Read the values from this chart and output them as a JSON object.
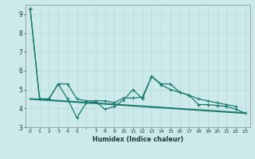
{
  "xlabel": "Humidex (Indice chaleur)",
  "x_values": [
    0,
    1,
    2,
    3,
    4,
    5,
    6,
    7,
    8,
    9,
    10,
    11,
    12,
    13,
    14,
    15,
    16,
    17,
    18,
    19,
    20,
    21,
    22,
    23
  ],
  "line_jagged": [
    9.3,
    4.5,
    4.5,
    5.3,
    4.5,
    3.5,
    4.3,
    4.35,
    3.95,
    4.1,
    4.45,
    5.0,
    4.5,
    5.7,
    5.3,
    5.3,
    4.85,
    4.7,
    4.2,
    4.2,
    4.15,
    4.1,
    3.95,
    3.75
  ],
  "line_smooth": [
    9.3,
    4.5,
    4.5,
    5.3,
    5.3,
    4.5,
    4.4,
    4.4,
    4.4,
    4.3,
    4.55,
    4.55,
    4.6,
    5.7,
    5.25,
    5.0,
    4.85,
    4.7,
    4.5,
    4.4,
    4.3,
    4.2,
    4.1,
    null
  ],
  "line_trend_x": [
    0,
    23
  ],
  "line_trend_y": [
    4.5,
    3.75
  ],
  "ylim": [
    3.0,
    9.5
  ],
  "xlim": [
    -0.5,
    23.5
  ],
  "yticks": [
    3,
    4,
    5,
    6,
    7,
    8,
    9
  ],
  "xticks": [
    0,
    1,
    2,
    3,
    4,
    5,
    6,
    7,
    8,
    9,
    10,
    11,
    12,
    13,
    14,
    15,
    16,
    17,
    18,
    19,
    20,
    21,
    22,
    23
  ],
  "xtick_labels": [
    "0",
    "1",
    "2",
    "3",
    "4",
    "5",
    "",
    "7",
    "8",
    "9",
    "10",
    "11",
    "12",
    "13",
    "14",
    "15",
    "16",
    "17",
    "18",
    "19",
    "20",
    "21",
    "22",
    "23"
  ],
  "line_color": "#1a7a6e",
  "bg_color": "#cdeaea",
  "grid_major_color": "#b8d8d8",
  "grid_minor_color": "#c8e4e4"
}
